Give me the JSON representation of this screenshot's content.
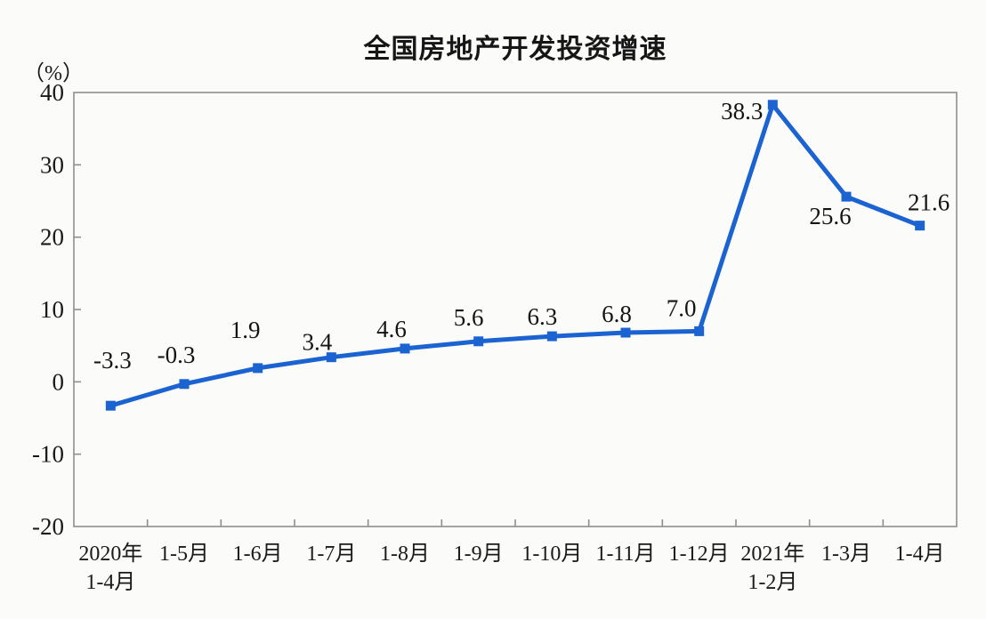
{
  "chart_data": {
    "type": "line",
    "title": "全国房地产开发投资增速",
    "unit_label": "（%）",
    "xlabel": "",
    "ylabel": "（%）",
    "ylim": [
      -20,
      40
    ],
    "y_ticks": [
      "40",
      "30",
      "20",
      "10",
      "0",
      "-10",
      "-20"
    ],
    "y_tick_values": [
      40,
      30,
      20,
      10,
      0,
      -10,
      -20
    ],
    "grid": false,
    "legend": "none",
    "categories": [
      [
        "2020年",
        "1-4月"
      ],
      [
        "1-5月"
      ],
      [
        "1-6月"
      ],
      [
        "1-7月"
      ],
      [
        "1-8月"
      ],
      [
        "1-9月"
      ],
      [
        "1-10月"
      ],
      [
        "1-11月"
      ],
      [
        "1-12月"
      ],
      [
        "2021年",
        "1-2月"
      ],
      [
        "1-3月"
      ],
      [
        "1-4月"
      ]
    ],
    "series": [
      {
        "name": "全国房地产开发投资增速",
        "values": [
          -3.3,
          -0.3,
          1.9,
          3.4,
          4.6,
          5.6,
          6.3,
          6.8,
          7.0,
          38.3,
          25.6,
          21.6
        ],
        "value_labels": [
          "-3.3",
          "-0.3",
          "1.9",
          "3.4",
          "4.6",
          "5.6",
          "6.3",
          "6.8",
          "7.0",
          "38.3",
          "25.6",
          "21.6"
        ]
      }
    ],
    "colors": {
      "line": "#1b63d1",
      "marker": "#1b63d1",
      "axis": "#8f8f8f",
      "text": "#1a1a1a",
      "background": "#fbfbf9"
    },
    "marker_shape": "square"
  }
}
